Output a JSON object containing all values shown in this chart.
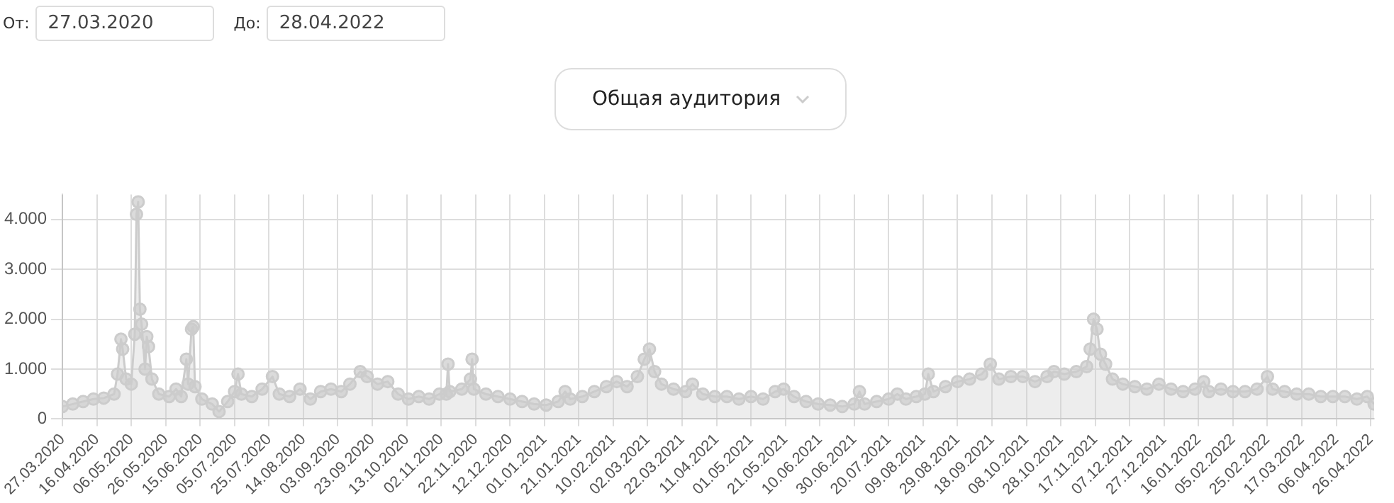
{
  "chart_data": {
    "type": "area",
    "title": "Общая аудитория",
    "annotations": [
      "От:",
      "27.03.2020",
      "До:",
      "28.04.2022"
    ],
    "x": [
      "2020-03-27",
      "2020-04-02",
      "2020-04-08",
      "2020-04-14",
      "2020-04-20",
      "2020-04-26",
      "2020-04-28",
      "2020-04-30",
      "2020-05-01",
      "2020-05-03",
      "2020-05-06",
      "2020-05-08",
      "2020-05-09",
      "2020-05-10",
      "2020-05-11",
      "2020-05-12",
      "2020-05-14",
      "2020-05-15",
      "2020-05-16",
      "2020-05-18",
      "2020-05-22",
      "2020-05-28",
      "2020-06-01",
      "2020-06-04",
      "2020-06-07",
      "2020-06-08",
      "2020-06-10",
      "2020-06-11",
      "2020-06-12",
      "2020-06-16",
      "2020-06-22",
      "2020-06-26",
      "2020-07-01",
      "2020-07-05",
      "2020-07-07",
      "2020-07-09",
      "2020-07-15",
      "2020-07-21",
      "2020-07-27",
      "2020-07-31",
      "2020-08-06",
      "2020-08-12",
      "2020-08-18",
      "2020-08-24",
      "2020-08-30",
      "2020-09-05",
      "2020-09-10",
      "2020-09-16",
      "2020-09-20",
      "2020-09-26",
      "2020-10-02",
      "2020-10-08",
      "2020-10-14",
      "2020-10-20",
      "2020-10-26",
      "2020-11-01",
      "2020-11-05",
      "2020-11-06",
      "2020-11-07",
      "2020-11-14",
      "2020-11-19",
      "2020-11-20",
      "2020-11-21",
      "2020-11-28",
      "2020-12-05",
      "2020-12-12",
      "2020-12-19",
      "2020-12-26",
      "2021-01-02",
      "2021-01-09",
      "2021-01-13",
      "2021-01-16",
      "2021-01-23",
      "2021-01-30",
      "2021-02-06",
      "2021-02-12",
      "2021-02-18",
      "2021-02-24",
      "2021-02-28",
      "2021-03-03",
      "2021-03-06",
      "2021-03-10",
      "2021-03-17",
      "2021-03-24",
      "2021-03-28",
      "2021-04-03",
      "2021-04-10",
      "2021-04-17",
      "2021-04-24",
      "2021-05-01",
      "2021-05-08",
      "2021-05-15",
      "2021-05-20",
      "2021-05-26",
      "2021-06-02",
      "2021-06-09",
      "2021-06-16",
      "2021-06-23",
      "2021-06-30",
      "2021-07-03",
      "2021-07-06",
      "2021-07-13",
      "2021-07-20",
      "2021-07-25",
      "2021-07-30",
      "2021-08-05",
      "2021-08-10",
      "2021-08-12",
      "2021-08-15",
      "2021-08-22",
      "2021-08-29",
      "2021-09-05",
      "2021-09-12",
      "2021-09-17",
      "2021-09-22",
      "2021-09-29",
      "2021-10-06",
      "2021-10-13",
      "2021-10-20",
      "2021-10-24",
      "2021-10-30",
      "2021-11-06",
      "2021-11-12",
      "2021-11-14",
      "2021-11-16",
      "2021-11-18",
      "2021-11-20",
      "2021-11-23",
      "2021-11-27",
      "2021-12-03",
      "2021-12-10",
      "2021-12-17",
      "2021-12-24",
      "2021-12-31",
      "2022-01-07",
      "2022-01-14",
      "2022-01-19",
      "2022-01-22",
      "2022-01-29",
      "2022-02-05",
      "2022-02-12",
      "2022-02-19",
      "2022-02-25",
      "2022-02-28",
      "2022-03-07",
      "2022-03-14",
      "2022-03-21",
      "2022-03-28",
      "2022-04-04",
      "2022-04-11",
      "2022-04-18",
      "2022-04-24",
      "2022-04-28"
    ],
    "series": [
      {
        "color": "#cccccc",
        "values": [
          250,
          300,
          350,
          400,
          420,
          500,
          900,
          1600,
          1400,
          800,
          700,
          1700,
          4100,
          4350,
          2200,
          1900,
          1000,
          1650,
          1450,
          800,
          500,
          450,
          600,
          450,
          1200,
          700,
          1800,
          1850,
          650,
          400,
          300,
          150,
          350,
          550,
          900,
          500,
          450,
          600,
          850,
          500,
          450,
          600,
          400,
          550,
          600,
          550,
          700,
          950,
          850,
          700,
          750,
          500,
          400,
          450,
          400,
          500,
          500,
          1100,
          550,
          600,
          800,
          1200,
          600,
          500,
          450,
          400,
          350,
          300,
          280,
          350,
          550,
          400,
          450,
          550,
          650,
          750,
          650,
          850,
          1200,
          1400,
          950,
          700,
          600,
          550,
          700,
          500,
          450,
          450,
          400,
          450,
          400,
          550,
          600,
          450,
          350,
          300,
          280,
          250,
          300,
          550,
          300,
          350,
          400,
          500,
          400,
          450,
          500,
          900,
          550,
          650,
          750,
          800,
          900,
          1100,
          800,
          850,
          850,
          750,
          850,
          950,
          900,
          950,
          1050,
          1400,
          2000,
          1800,
          1300,
          1100,
          800,
          700,
          650,
          600,
          700,
          600,
          550,
          600,
          750,
          550,
          600,
          550,
          550,
          600,
          850,
          600,
          550,
          500,
          500,
          450,
          450,
          450,
          400,
          450,
          300
        ]
      }
    ],
    "xlim": [
      "2020-03-27",
      "2022-04-28"
    ],
    "xticks": [
      {
        "value": "2020-03-27",
        "label": "27.03.2020"
      },
      {
        "value": "2020-04-16",
        "label": "16.04.2020"
      },
      {
        "value": "2020-05-06",
        "label": "06.05.2020"
      },
      {
        "value": "2020-05-26",
        "label": "26.05.2020"
      },
      {
        "value": "2020-06-15",
        "label": "15.06.2020"
      },
      {
        "value": "2020-07-05",
        "label": "05.07.2020"
      },
      {
        "value": "2020-07-25",
        "label": "25.07.2020"
      },
      {
        "value": "2020-08-14",
        "label": "14.08.2020"
      },
      {
        "value": "2020-09-03",
        "label": "03.09.2020"
      },
      {
        "value": "2020-09-23",
        "label": "23.09.2020"
      },
      {
        "value": "2020-10-13",
        "label": "13.10.2020"
      },
      {
        "value": "2020-11-02",
        "label": "02.11.2020"
      },
      {
        "value": "2020-11-22",
        "label": "22.11.2020"
      },
      {
        "value": "2020-12-12",
        "label": "12.12.2020"
      },
      {
        "value": "2021-01-01",
        "label": "01.01.2021"
      },
      {
        "value": "2021-01-21",
        "label": "21.01.2021"
      },
      {
        "value": "2021-02-10",
        "label": "10.02.2021"
      },
      {
        "value": "2021-03-02",
        "label": "02.03.2021"
      },
      {
        "value": "2021-03-22",
        "label": "22.03.2021"
      },
      {
        "value": "2021-04-11",
        "label": "11.04.2021"
      },
      {
        "value": "2021-05-01",
        "label": "01.05.2021"
      },
      {
        "value": "2021-05-21",
        "label": "21.05.2021"
      },
      {
        "value": "2021-06-10",
        "label": "10.06.2021"
      },
      {
        "value": "2021-06-30",
        "label": "30.06.2021"
      },
      {
        "value": "2021-07-20",
        "label": "20.07.2021"
      },
      {
        "value": "2021-08-09",
        "label": "09.08.2021"
      },
      {
        "value": "2021-08-29",
        "label": "29.08.2021"
      },
      {
        "value": "2021-09-18",
        "label": "18.09.2021"
      },
      {
        "value": "2021-10-08",
        "label": "08.10.2021"
      },
      {
        "value": "2021-10-28",
        "label": "28.10.2021"
      },
      {
        "value": "2021-11-17",
        "label": "17.11.2021"
      },
      {
        "value": "2021-12-07",
        "label": "07.12.2021"
      },
      {
        "value": "2021-12-27",
        "label": "27.12.2021"
      },
      {
        "value": "2022-01-16",
        "label": "16.01.2022"
      },
      {
        "value": "2022-02-05",
        "label": "05.02.2022"
      },
      {
        "value": "2022-02-25",
        "label": "25.02.2022"
      },
      {
        "value": "2022-03-17",
        "label": "17.03.2022"
      },
      {
        "value": "2022-04-06",
        "label": "06.04.2022"
      },
      {
        "value": "2022-04-26",
        "label": "26.04.2022"
      }
    ],
    "ylim": [
      0,
      4500
    ],
    "yticks": [
      0,
      {
        "value": 1000,
        "label": "1.000"
      },
      {
        "value": 2000,
        "label": "2.000"
      },
      {
        "value": 3000,
        "label": "3.000"
      },
      {
        "value": 4000,
        "label": "4.000"
      }
    ],
    "grid": true,
    "legend": false,
    "marker": "circle"
  }
}
